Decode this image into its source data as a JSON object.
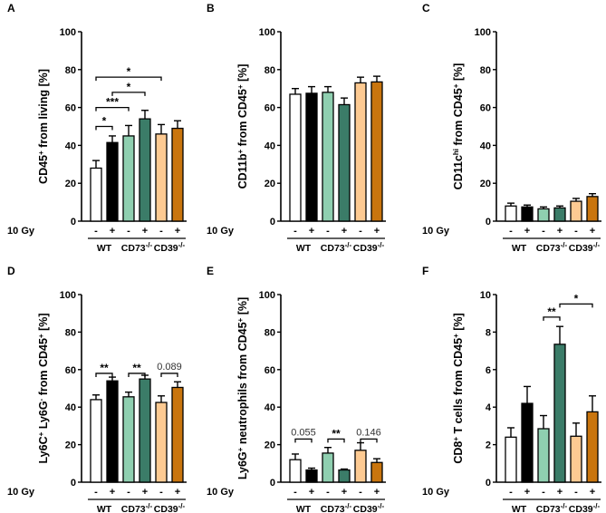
{
  "colors": {
    "WT-": "#ffffff",
    "WT+": "#000000",
    "CD73-": "#8fcfb0",
    "CD73+": "#3b7c68",
    "CD39-": "#fdca92",
    "CD39+": "#c9750e"
  },
  "treatment_label": "10 Gy",
  "signs": [
    "-",
    "+",
    "-",
    "+",
    "-",
    "+"
  ],
  "groups": [
    [
      {
        "t": "WT"
      }
    ],
    [
      {
        "t": "CD73"
      },
      {
        "t": "-/-",
        "sup": true
      }
    ],
    [
      {
        "t": "CD39"
      },
      {
        "t": "-/-",
        "sup": true
      }
    ]
  ],
  "chart_data": [
    {
      "type": "bar",
      "letter": "A",
      "ylim": [
        0,
        100
      ],
      "yticks": [
        0,
        20,
        40,
        60,
        80,
        100
      ],
      "ylabel": [
        {
          "t": "CD45"
        },
        {
          "t": "+",
          "sup": true
        },
        {
          "t": " from living [%]"
        }
      ],
      "categories": [
        "WT-",
        "WT+",
        "CD73-",
        "CD73+",
        "CD39-",
        "CD39+"
      ],
      "values": [
        28,
        41.5,
        45,
        54,
        46,
        49
      ],
      "errors": [
        4,
        3.5,
        5.5,
        4.5,
        5,
        4
      ],
      "significance": [
        {
          "from": 0,
          "to": 1,
          "y": 50,
          "label": "*"
        },
        {
          "from": 0,
          "to": 2,
          "y": 60,
          "label": "***"
        },
        {
          "from": 1,
          "to": 3,
          "y": 68,
          "label": "*"
        },
        {
          "from": 0,
          "to": 4,
          "y": 76,
          "label": "*"
        }
      ]
    },
    {
      "type": "bar",
      "letter": "B",
      "ylim": [
        0,
        100
      ],
      "yticks": [
        0,
        20,
        40,
        60,
        80,
        100
      ],
      "ylabel": [
        {
          "t": "CD11b"
        },
        {
          "t": "+",
          "sup": true
        },
        {
          "t": "  from CD45"
        },
        {
          "t": "+",
          "sup": true
        },
        {
          "t": " [%]"
        }
      ],
      "categories": [
        "WT-",
        "WT+",
        "CD73-",
        "CD73+",
        "CD39-",
        "CD39+"
      ],
      "values": [
        67,
        67.5,
        68,
        61.5,
        73,
        73.5
      ],
      "errors": [
        3,
        3.5,
        3,
        3.5,
        3,
        3
      ],
      "significance": []
    },
    {
      "type": "bar",
      "letter": "C",
      "ylim": [
        0,
        100
      ],
      "yticks": [
        0,
        20,
        40,
        60,
        80,
        100
      ],
      "ylabel": [
        {
          "t": "CD11c"
        },
        {
          "t": "hi",
          "sup": true
        },
        {
          "t": " from CD45"
        },
        {
          "t": "+",
          "sup": true
        },
        {
          "t": "  [%]"
        }
      ],
      "categories": [
        "WT-",
        "WT+",
        "CD73-",
        "CD73+",
        "CD39-",
        "CD39+"
      ],
      "values": [
        8,
        7.5,
        6.5,
        7,
        10.5,
        13
      ],
      "errors": [
        1.5,
        1,
        1,
        1,
        1.5,
        1.5
      ],
      "significance": []
    },
    {
      "type": "bar",
      "letter": "D",
      "ylim": [
        0,
        100
      ],
      "yticks": [
        0,
        20,
        40,
        60,
        80,
        100
      ],
      "ylabel": [
        {
          "t": "Ly6C"
        },
        {
          "t": "+",
          "sup": true
        },
        {
          "t": " Ly6G"
        },
        {
          "t": "-",
          "sup": true
        },
        {
          "t": " from CD45"
        },
        {
          "t": "+",
          "sup": true
        },
        {
          "t": " [%]"
        }
      ],
      "categories": [
        "WT-",
        "WT+",
        "CD73-",
        "CD73+",
        "CD39-",
        "CD39+"
      ],
      "values": [
        44,
        54,
        45.5,
        55,
        42.5,
        50.5
      ],
      "errors": [
        2.5,
        2,
        2.5,
        2,
        3.5,
        3
      ],
      "significance": [
        {
          "from": 0,
          "to": 1,
          "y": 58,
          "label": "**"
        },
        {
          "from": 2,
          "to": 3,
          "y": 58,
          "label": "**"
        },
        {
          "from": 4,
          "to": 5,
          "y": 58,
          "label": "0.089"
        }
      ]
    },
    {
      "type": "bar",
      "letter": "E",
      "ylim": [
        0,
        100
      ],
      "yticks": [
        0,
        20,
        40,
        60,
        80,
        100
      ],
      "ylabel": [
        {
          "t": "Ly6G"
        },
        {
          "t": "+",
          "sup": true
        },
        {
          "t": " neutrophils from CD45"
        },
        {
          "t": "+",
          "sup": true
        },
        {
          "t": " [%]"
        }
      ],
      "categories": [
        "WT-",
        "WT+",
        "CD73-",
        "CD73+",
        "CD39-",
        "CD39+"
      ],
      "values": [
        12,
        6.5,
        15.5,
        6.5,
        17,
        10.5
      ],
      "errors": [
        3,
        1,
        3,
        0.5,
        4,
        2
      ],
      "significance": [
        {
          "from": 0,
          "to": 1,
          "y": 23,
          "label": "0.055"
        },
        {
          "from": 2,
          "to": 3,
          "y": 23,
          "label": "**"
        },
        {
          "from": 4,
          "to": 5,
          "y": 23,
          "label": "0.146"
        }
      ]
    },
    {
      "type": "bar",
      "letter": "F",
      "ylim": [
        0,
        10
      ],
      "yticks": [
        0,
        2,
        4,
        6,
        8,
        10
      ],
      "ylabel": [
        {
          "t": "CD8"
        },
        {
          "t": "+",
          "sup": true
        },
        {
          "t": " T cells from CD45"
        },
        {
          "t": "+",
          "sup": true
        },
        {
          "t": " [%]"
        }
      ],
      "categories": [
        "WT-",
        "WT+",
        "CD73-",
        "CD73+",
        "CD39-",
        "CD39+"
      ],
      "values": [
        2.4,
        4.2,
        2.85,
        7.35,
        2.45,
        3.75
      ],
      "errors": [
        0.5,
        0.9,
        0.7,
        0.95,
        0.7,
        0.85
      ],
      "significance": [
        {
          "from": 2,
          "to": 3,
          "y": 8.8,
          "label": "**"
        },
        {
          "from": 3,
          "to": 5,
          "y": 9.5,
          "label": "*"
        }
      ]
    }
  ]
}
